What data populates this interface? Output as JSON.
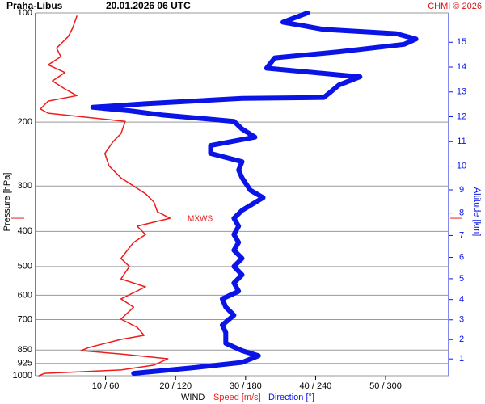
{
  "chart_data": {
    "type": "line",
    "title": "Praha-Libus",
    "subtitle": "20.01.2026 06 UTC",
    "credit": "CHMI © 2026",
    "x_label": "WIND",
    "y_label": "Pressure [hPa]",
    "y2_label": "Altitude [km]",
    "y_log": true,
    "grid": true,
    "ylim": [
      1000,
      100
    ],
    "yticks": [
      100,
      200,
      300,
      400,
      500,
      600,
      700,
      850,
      925,
      1000
    ],
    "y2ticks": [
      1,
      2,
      3,
      4,
      5,
      6,
      7,
      8,
      9,
      10,
      11,
      12,
      13,
      14,
      15
    ],
    "xlim": [
      0,
      59
    ],
    "x2lim": [
      0,
      354
    ],
    "xticks": [
      {
        "value": 10,
        "label": "10 / 60"
      },
      {
        "value": 20,
        "label": "20 / 120"
      },
      {
        "value": 30,
        "label": "30 / 180"
      },
      {
        "value": 40,
        "label": "40 / 240"
      },
      {
        "value": 50,
        "label": "50 / 300"
      }
    ],
    "max_wind": {
      "label": "MXWS",
      "pressure": 368
    },
    "series": [
      {
        "name": "Speed [m/s]",
        "color": "#ee1c1c",
        "y": [
          1000,
          985,
          964,
          935,
          898,
          871,
          853,
          836,
          794,
          774,
          735,
          698,
          647,
          614,
          569,
          541,
          500,
          475,
          429,
          408,
          387,
          368,
          353,
          332,
          315,
          300,
          285,
          264,
          244,
          226,
          215,
          199,
          189,
          184,
          175,
          169,
          162,
          154,
          146,
          139,
          132,
          125,
          116,
          110,
          102
        ],
        "values": [
          0.5,
          1.3,
          12.2,
          16.9,
          18.9,
          12.2,
          6.5,
          7.6,
          12.2,
          15.5,
          14.5,
          12.2,
          14.0,
          12.2,
          15.7,
          12.2,
          13.4,
          12.2,
          14.0,
          15.7,
          14.5,
          19.2,
          17.4,
          16.9,
          15.7,
          14.0,
          12.2,
          10.5,
          9.9,
          11.1,
          12.2,
          12.8,
          1.8,
          0.7,
          1.8,
          5.9,
          4.2,
          2.4,
          4.2,
          1.8,
          3.6,
          3.0,
          4.7,
          5.3,
          5.9
        ]
      },
      {
        "name": "Direction [°]",
        "color": "#0a14e6",
        "axis": "x2",
        "y": [
          985,
          950,
          919,
          881,
          853,
          814,
          760,
          725,
          681,
          647,
          614,
          585,
          555,
          527,
          500,
          475,
          451,
          429,
          408,
          387,
          368,
          350,
          323,
          308,
          285,
          271,
          257,
          244,
          232,
          220,
          209,
          199,
          191,
          186,
          182,
          178,
          172,
          171,
          166,
          158,
          150,
          142,
          133,
          128,
          122,
          118,
          114,
          111,
          106,
          100
        ],
        "values": [
          84,
          136,
          177,
          191,
          177,
          163,
          163,
          160,
          170,
          163,
          160,
          174,
          170,
          177,
          170,
          177,
          170,
          174,
          170,
          174,
          170,
          177,
          195,
          184,
          177,
          174,
          177,
          150,
          150,
          188,
          177,
          170,
          108,
          80,
          49,
          94,
          177,
          247,
          252,
          260,
          278,
          198,
          205,
          260,
          316,
          326,
          309,
          247,
          212,
          233
        ]
      }
    ]
  }
}
